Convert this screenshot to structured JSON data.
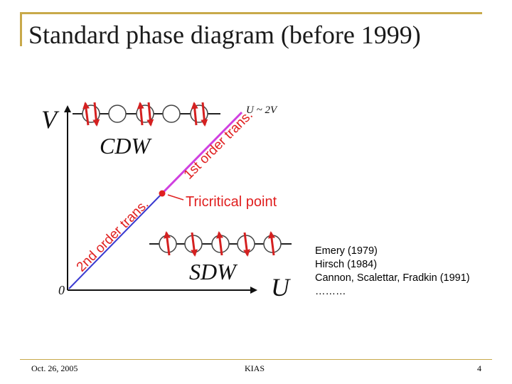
{
  "slide": {
    "title": "Standard phase diagram (before 1999)",
    "references": [
      "Emery (1979)",
      "Hirsch (1984)",
      "Cannon, Scalettar, Fradkin (1991)",
      "………"
    ],
    "footer": {
      "date": "Oct. 26, 2005",
      "center": "KIAS",
      "page": "4"
    }
  },
  "diagram": {
    "axis_y_label": "V",
    "axis_x_label": "U",
    "origin_label": "0",
    "line_label": "U ~ 2V",
    "phase_top": "CDW",
    "phase_bottom": "SDW",
    "first_order_label": "1st order trans.",
    "second_order_label": "2nd order trans.",
    "tricritical_label": "Tricritical point",
    "colors": {
      "first_order_line": "#d040e0",
      "second_order_line": "#3a3ad0",
      "spin_arrow": "#d42020",
      "tricritical_point": "#e02020",
      "annotation_text": "#e02020",
      "frame": "#c8a94a"
    }
  }
}
